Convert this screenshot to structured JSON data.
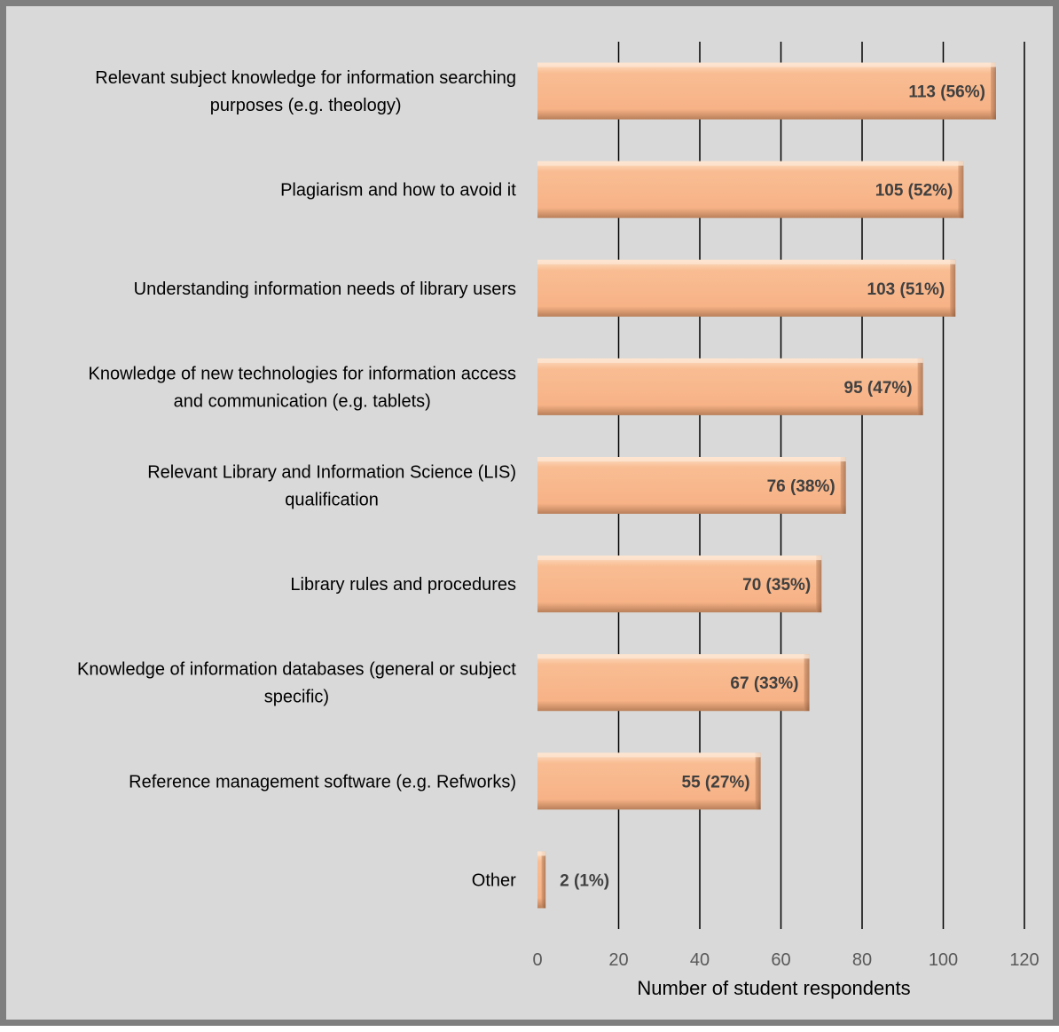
{
  "chart_data": {
    "type": "bar",
    "orientation": "horizontal",
    "categories": [
      [
        "Relevant subject knowledge for information searching",
        "purposes (e.g. theology)"
      ],
      [
        "Plagiarism and how to avoid it"
      ],
      [
        "Understanding information needs of  library users"
      ],
      [
        "Knowledge of new technologies for information access",
        "and communication (e.g. tablets)"
      ],
      [
        "Relevant Library and Information  Science (LIS)",
        "qualification"
      ],
      [
        "Library rules and procedures"
      ],
      [
        "Knowledge of information databases (general or subject",
        "specific)"
      ],
      [
        "Reference management software (e.g. Refworks)"
      ],
      [
        "Other"
      ]
    ],
    "values": [
      113,
      105,
      103,
      95,
      76,
      70,
      67,
      55,
      2
    ],
    "data_labels": [
      "113 (56%)",
      "105 (52%)",
      "103 (51%)",
      "95 (47%)",
      "76 (38%)",
      "70 (35%)",
      "67 (33%)",
      "55 (27%)",
      "2 (1%)"
    ],
    "xlabel": "Number of student respondents",
    "xlim": [
      0,
      120
    ],
    "xticks": [
      "0",
      "20",
      "40",
      "60",
      "80",
      "100",
      "120"
    ],
    "grid": "vertical",
    "legend": "none",
    "colors": {
      "bar_fill": "#f9b98d",
      "bar_highlight": "#fdd7bb",
      "bar_shadow": "#8c5a3a",
      "background": "#d9d9d9",
      "frame": "#7f7f7f",
      "gridline": "#000000"
    }
  }
}
